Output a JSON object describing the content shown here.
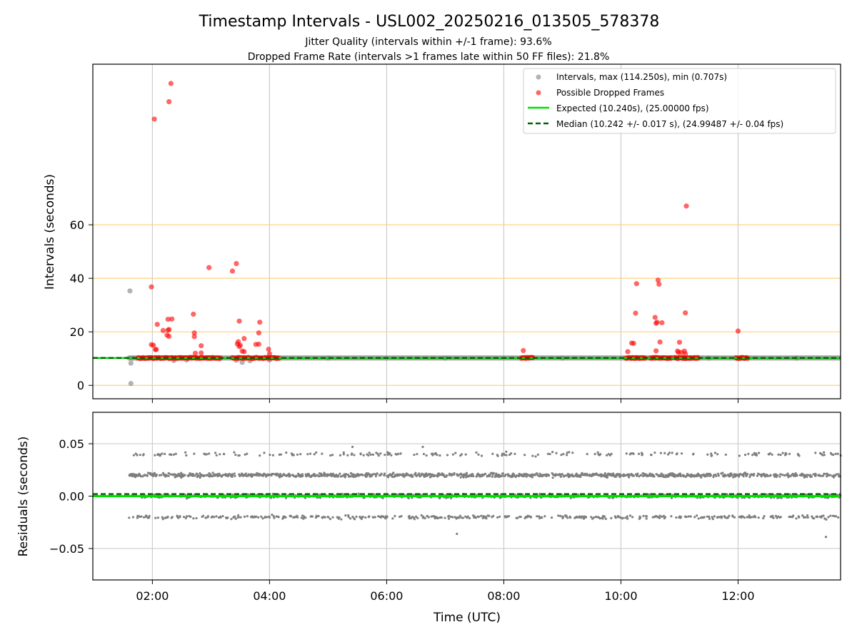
{
  "title": "Timestamp Intervals - USL002_20250216_013505_578378",
  "subtitle_1": "Jitter Quality (intervals within +/-1 frame): 93.6%",
  "subtitle_2": "Dropped Frame Rate (intervals >1 frames late within 50 FF files): 21.8%",
  "colors": {
    "intervals": "#808080",
    "dropped": "#ff0000",
    "expected": "#00e000",
    "median": "#006400",
    "hgrid": "#ffd27f",
    "vgrid": "#cccccc",
    "residuals": "#7f7f7f"
  },
  "chart_data": [
    {
      "type": "scatter",
      "ylabel": "Intervals (seconds)",
      "ylim": [
        -5,
        120
      ],
      "xlim": [
        "00:59",
        "13:45"
      ],
      "x_ticks": [
        "02:00",
        "04:00",
        "06:00",
        "08:00",
        "10:00",
        "12:00"
      ],
      "y_ticks": [
        "0",
        "20",
        "40",
        "60"
      ],
      "grid": "horizontal orange at y ticks, vertical gray at x ticks",
      "legend_position": "top-right",
      "legend": {
        "intervals": "Intervals, max (114.250s), min (0.707s)",
        "dropped": "Possible Dropped Frames",
        "expected": "Expected (10.240s), (25.00000 fps)",
        "median": "Median (10.242 +/- 0.017 s), (24.99487 +/- 0.04 fps)"
      },
      "reference_lines": {
        "expected": 10.24,
        "median": 10.242
      },
      "series": [
        {
          "name": "Intervals, max (114.250s), min (0.707s)",
          "points": [
            [
              "01:37",
              35.3
            ],
            [
              "01:38",
              8.3
            ],
            [
              "01:38",
              0.7
            ],
            [
              "01:36",
              10.2
            ],
            [
              "01:40",
              10.2
            ],
            [
              "02:22",
              9.3
            ],
            [
              "02:35",
              9.5
            ],
            [
              "03:26",
              9.4
            ],
            [
              "03:32",
              8.6
            ],
            [
              "03:40",
              9.2
            ],
            [
              "04:00",
              9.5
            ],
            [
              "02:50",
              10.2
            ],
            [
              "05:00",
              10.2
            ],
            [
              "07:00",
              10.2
            ],
            [
              "09:00",
              10.2
            ],
            [
              "11:30",
              10.2
            ],
            [
              "13:00",
              10.2
            ]
          ],
          "baseline_band": {
            "x_from": "01:36",
            "x_to": "13:45",
            "y": 10.24
          }
        },
        {
          "name": "Possible Dropped Frames",
          "points": [
            [
              "02:02",
              99.5
            ],
            [
              "02:17",
              106.0
            ],
            [
              "02:19",
              112.8
            ],
            [
              "01:59",
              36.8
            ],
            [
              "02:05",
              22.8
            ],
            [
              "01:59",
              15.2
            ],
            [
              "02:01",
              15.0
            ],
            [
              "02:03",
              13.4
            ],
            [
              "02:04",
              13.4
            ],
            [
              "02:11",
              20.5
            ],
            [
              "02:15",
              18.8
            ],
            [
              "02:16",
              20.6
            ],
            [
              "02:17",
              20.9
            ],
            [
              "02:16",
              24.7
            ],
            [
              "02:20",
              24.8
            ],
            [
              "02:17",
              18.3
            ],
            [
              "02:42",
              26.6
            ],
            [
              "02:43",
              19.6
            ],
            [
              "02:43",
              18.2
            ],
            [
              "02:50",
              14.8
            ],
            [
              "02:44",
              12.0
            ],
            [
              "02:50",
              12.1
            ],
            [
              "02:58",
              44.0
            ],
            [
              "03:22",
              42.7
            ],
            [
              "03:26",
              45.5
            ],
            [
              "03:27",
              15.5
            ],
            [
              "03:28",
              16.3
            ],
            [
              "03:29",
              24.0
            ],
            [
              "03:29",
              14.5
            ],
            [
              "03:30",
              15.0
            ],
            [
              "03:32",
              12.8
            ],
            [
              "03:34",
              12.6
            ],
            [
              "03:34",
              17.5
            ],
            [
              "03:46",
              15.3
            ],
            [
              "03:49",
              15.4
            ],
            [
              "03:50",
              23.6
            ],
            [
              "03:49",
              19.6
            ],
            [
              "03:59",
              13.5
            ],
            [
              "04:00",
              11.8
            ],
            [
              "08:20",
              13.0
            ],
            [
              "10:07",
              12.6
            ],
            [
              "10:11",
              15.8
            ],
            [
              "10:13",
              15.7
            ],
            [
              "10:15",
              27.0
            ],
            [
              "10:16",
              38.0
            ],
            [
              "10:35",
              25.4
            ],
            [
              "10:36",
              23.2
            ],
            [
              "10:37",
              23.6
            ],
            [
              "10:38",
              39.3
            ],
            [
              "10:39",
              37.8
            ],
            [
              "10:42",
              23.4
            ],
            [
              "10:40",
              16.2
            ],
            [
              "10:36",
              12.9
            ],
            [
              "10:58",
              12.8
            ],
            [
              "10:59",
              12.3
            ],
            [
              "11:00",
              16.1
            ],
            [
              "11:02",
              12.3
            ],
            [
              "11:05",
              12.8
            ],
            [
              "11:06",
              27.1
            ],
            [
              "11:06",
              11.8
            ],
            [
              "11:07",
              67.0
            ],
            [
              "12:00",
              20.3
            ]
          ],
          "clusters": [
            {
              "x_from": "01:45",
              "x_to": "02:40",
              "y": 10.24
            },
            {
              "x_from": "02:40",
              "x_to": "03:10",
              "y": 10.24
            },
            {
              "x_from": "03:22",
              "x_to": "04:10",
              "y": 10.24
            },
            {
              "x_from": "08:18",
              "x_to": "08:30",
              "y": 10.24
            },
            {
              "x_from": "10:05",
              "x_to": "10:25",
              "y": 10.24
            },
            {
              "x_from": "10:30",
              "x_to": "10:52",
              "y": 10.24
            },
            {
              "x_from": "10:55",
              "x_to": "11:20",
              "y": 10.24
            },
            {
              "x_from": "11:58",
              "x_to": "12:10",
              "y": 10.24
            }
          ]
        }
      ]
    },
    {
      "type": "scatter",
      "xlabel": "Time (UTC)",
      "ylabel": "Residuals (seconds)",
      "ylim": [
        -0.08,
        0.08
      ],
      "xlim": [
        "00:59",
        "13:45"
      ],
      "x_ticks": [
        "02:00",
        "04:00",
        "06:00",
        "08:00",
        "10:00",
        "12:00"
      ],
      "y_ticks": [
        "0.05",
        "0.00",
        "−0.05"
      ],
      "grid": "gray at x and y ticks",
      "series": [
        {
          "description_levels": [
            0.04,
            0.02,
            0.0,
            -0.02
          ],
          "x_from": "01:36",
          "x_to": "13:45",
          "points": [
            [
              "07:12",
              -0.036
            ],
            [
              "13:30",
              -0.039
            ],
            [
              "05:25",
              0.047
            ],
            [
              "06:37",
              0.047
            ]
          ]
        }
      ],
      "reference_lines": {
        "expected": 0.0,
        "median": 0.002
      }
    }
  ]
}
